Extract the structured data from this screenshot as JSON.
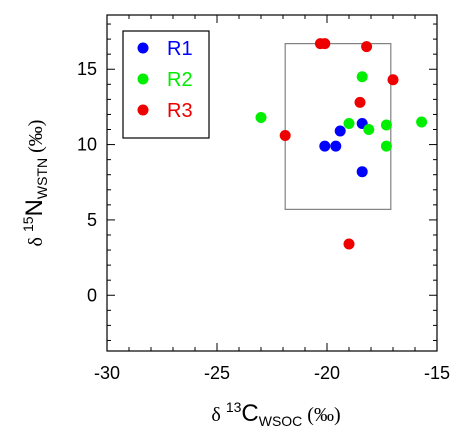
{
  "chart_data": {
    "type": "scatter",
    "xlabel": {
      "prefix": "δ ",
      "sup": "13",
      "main": "C",
      "sub": "WSOC",
      "suffix": " (‰)"
    },
    "ylabel": {
      "prefix": "δ ",
      "sup": "15",
      "main": "N",
      "sub": "WSTN",
      "suffix": " (‰)"
    },
    "xlim": [
      -30,
      -15
    ],
    "ylim": [
      -3.7,
      18.6
    ],
    "xticks": [
      -30,
      -25,
      -20,
      -15
    ],
    "yticks": [
      0,
      5,
      10,
      15
    ],
    "legend_position": "top-left",
    "grid": false,
    "series": [
      {
        "name": "R1",
        "color": "#0000ff",
        "points": [
          {
            "x": -20.1,
            "y": 9.9
          },
          {
            "x": -19.6,
            "y": 9.9
          },
          {
            "x": -19.4,
            "y": 10.9
          },
          {
            "x": -18.4,
            "y": 11.4
          },
          {
            "x": -18.4,
            "y": 8.2
          }
        ]
      },
      {
        "name": "R2",
        "color": "#00ee00",
        "points": [
          {
            "x": -23.0,
            "y": 11.8
          },
          {
            "x": -19.0,
            "y": 11.4
          },
          {
            "x": -18.4,
            "y": 14.5
          },
          {
            "x": -18.1,
            "y": 11.0
          },
          {
            "x": -17.3,
            "y": 11.3
          },
          {
            "x": -17.3,
            "y": 9.9
          },
          {
            "x": -15.7,
            "y": 11.5
          }
        ]
      },
      {
        "name": "R3",
        "color": "#ee0000",
        "points": [
          {
            "x": -21.9,
            "y": 10.6
          },
          {
            "x": -20.3,
            "y": 16.7
          },
          {
            "x": -20.1,
            "y": 16.7
          },
          {
            "x": -18.5,
            "y": 12.8
          },
          {
            "x": -18.2,
            "y": 16.5
          },
          {
            "x": -17.0,
            "y": 14.3
          },
          {
            "x": -19.0,
            "y": 3.4
          }
        ]
      }
    ],
    "annotations": [
      {
        "type": "rectangle",
        "x": [
          -21.9,
          -17.1
        ],
        "y": [
          5.7,
          16.7
        ],
        "color": "#808080"
      }
    ]
  }
}
